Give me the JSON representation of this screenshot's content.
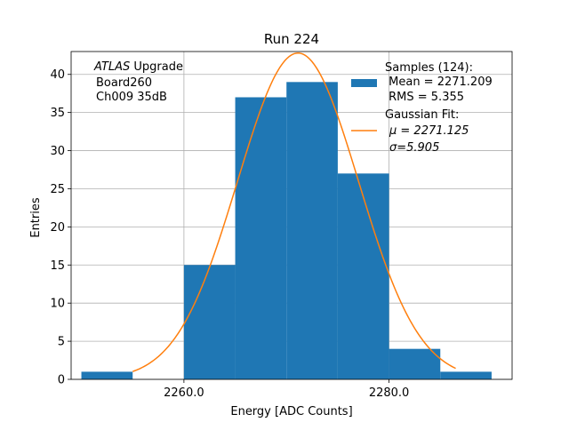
{
  "chart_data": {
    "type": "bar",
    "title": "Run 224",
    "xlabel": "Energy [ADC Counts]",
    "ylabel": "Entries",
    "xlim": [
      2249,
      2292
    ],
    "ylim": [
      0,
      43
    ],
    "grid": true,
    "x_ticks": [
      2260.0,
      2280.0
    ],
    "x_tick_labels": [
      "2260.0",
      "2280.0"
    ],
    "y_ticks": [
      0,
      5,
      10,
      15,
      20,
      25,
      30,
      35,
      40
    ],
    "y_tick_labels": [
      "0",
      "5",
      "10",
      "15",
      "20",
      "25",
      "30",
      "35",
      "40"
    ],
    "bins": [
      {
        "x0": 2250,
        "x1": 2255,
        "count": 1
      },
      {
        "x0": 2255,
        "x1": 2260,
        "count": 0
      },
      {
        "x0": 2260,
        "x1": 2265,
        "count": 15
      },
      {
        "x0": 2265,
        "x1": 2270,
        "count": 37
      },
      {
        "x0": 2270,
        "x1": 2275,
        "count": 39
      },
      {
        "x0": 2275,
        "x1": 2280,
        "count": 27
      },
      {
        "x0": 2280,
        "x1": 2285,
        "count": 4
      },
      {
        "x0": 2285,
        "x1": 2290,
        "count": 1
      }
    ],
    "fit": {
      "type": "gaussian",
      "mu": 2271.125,
      "sigma": 5.905,
      "amplitude": 42.8,
      "x_start": 2255,
      "x_end": 2286.5
    },
    "colors": {
      "bars": "#1f77b4",
      "fit": "#ff7f0e"
    },
    "annotation": {
      "lines": [
        "ATLAS Upgrade",
        "Board260",
        "Ch009 35dB"
      ],
      "italic_word": "ATLAS",
      "rest_of_first": " Upgrade"
    },
    "legend": {
      "position": "top-right",
      "samples_lines": [
        "Samples (124):",
        " Mean = 2271.209",
        " RMS = 5.355"
      ],
      "fit_lines": [
        "Gaussian Fit:",
        "μ = 2271.125",
        "σ=5.905"
      ]
    }
  }
}
